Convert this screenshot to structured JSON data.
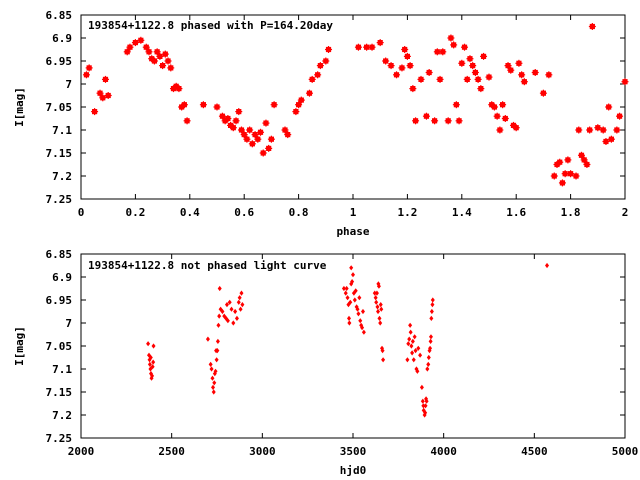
{
  "colors": {
    "series": "#ff0000",
    "axis": "#000000",
    "background": "#ffffff"
  },
  "chart_data": [
    {
      "type": "scatter",
      "title": "193854+1122.8 phased with P=164.20day",
      "xlabel": "phase",
      "ylabel": "I[mag]",
      "xlim": [
        0,
        2
      ],
      "ylim": [
        6.85,
        7.25
      ],
      "y_inverted": true,
      "grid": false,
      "legend": "none",
      "marker": "star",
      "xticks": [
        "0",
        "0.2",
        "0.4",
        "0.6",
        "0.8",
        "1",
        "1.2",
        "1.4",
        "1.6",
        "1.8",
        "2"
      ],
      "xtick_values": [
        0,
        0.2,
        0.4,
        0.6,
        0.8,
        1,
        1.2,
        1.4,
        1.6,
        1.8,
        2
      ],
      "yticks": [
        "6.85",
        "6.9",
        "6.95",
        "7",
        "7.05",
        "7.1",
        "7.15",
        "7.2",
        "7.25"
      ],
      "ytick_values": [
        6.85,
        6.9,
        6.95,
        7,
        7.05,
        7.1,
        7.15,
        7.2,
        7.25
      ],
      "points": [
        [
          0.02,
          6.98
        ],
        [
          0.03,
          6.965
        ],
        [
          0.05,
          7.06
        ],
        [
          0.07,
          7.02
        ],
        [
          0.08,
          7.03
        ],
        [
          0.09,
          6.99
        ],
        [
          0.1,
          7.025
        ],
        [
          0.17,
          6.93
        ],
        [
          0.18,
          6.92
        ],
        [
          0.2,
          6.91
        ],
        [
          0.22,
          6.905
        ],
        [
          0.24,
          6.92
        ],
        [
          0.25,
          6.93
        ],
        [
          0.26,
          6.945
        ],
        [
          0.27,
          6.95
        ],
        [
          0.28,
          6.93
        ],
        [
          0.29,
          6.94
        ],
        [
          0.3,
          6.96
        ],
        [
          0.31,
          6.935
        ],
        [
          0.32,
          6.95
        ],
        [
          0.33,
          6.965
        ],
        [
          0.34,
          7.01
        ],
        [
          0.35,
          7.005
        ],
        [
          0.36,
          7.01
        ],
        [
          0.37,
          7.05
        ],
        [
          0.38,
          7.045
        ],
        [
          0.39,
          7.08
        ],
        [
          0.45,
          7.045
        ],
        [
          0.5,
          7.05
        ],
        [
          0.52,
          7.07
        ],
        [
          0.53,
          7.08
        ],
        [
          0.54,
          7.075
        ],
        [
          0.55,
          7.09
        ],
        [
          0.56,
          7.095
        ],
        [
          0.57,
          7.08
        ],
        [
          0.58,
          7.06
        ],
        [
          0.59,
          7.1
        ],
        [
          0.6,
          7.11
        ],
        [
          0.61,
          7.12
        ],
        [
          0.62,
          7.1
        ],
        [
          0.63,
          7.13
        ],
        [
          0.64,
          7.11
        ],
        [
          0.65,
          7.12
        ],
        [
          0.66,
          7.105
        ],
        [
          0.67,
          7.15
        ],
        [
          0.68,
          7.085
        ],
        [
          0.69,
          7.14
        ],
        [
          0.7,
          7.12
        ],
        [
          0.71,
          7.045
        ],
        [
          0.75,
          7.1
        ],
        [
          0.76,
          7.11
        ],
        [
          0.79,
          7.06
        ],
        [
          0.8,
          7.045
        ],
        [
          0.81,
          7.035
        ],
        [
          0.84,
          7.02
        ],
        [
          0.85,
          6.99
        ],
        [
          0.87,
          6.98
        ],
        [
          0.88,
          6.96
        ],
        [
          0.9,
          6.95
        ],
        [
          0.91,
          6.925
        ],
        [
          1.02,
          6.92
        ],
        [
          1.05,
          6.92
        ],
        [
          1.07,
          6.92
        ],
        [
          1.1,
          6.91
        ],
        [
          1.12,
          6.95
        ],
        [
          1.14,
          6.96
        ],
        [
          1.16,
          6.98
        ],
        [
          1.18,
          6.965
        ],
        [
          1.19,
          6.925
        ],
        [
          1.2,
          6.94
        ],
        [
          1.21,
          6.96
        ],
        [
          1.22,
          7.01
        ],
        [
          1.23,
          7.08
        ],
        [
          1.25,
          6.99
        ],
        [
          1.27,
          7.07
        ],
        [
          1.28,
          6.975
        ],
        [
          1.3,
          7.08
        ],
        [
          1.31,
          6.93
        ],
        [
          1.32,
          6.99
        ],
        [
          1.33,
          6.93
        ],
        [
          1.35,
          7.08
        ],
        [
          1.36,
          6.9
        ],
        [
          1.37,
          6.915
        ],
        [
          1.38,
          7.045
        ],
        [
          1.39,
          7.08
        ],
        [
          1.4,
          6.955
        ],
        [
          1.41,
          6.92
        ],
        [
          1.42,
          6.99
        ],
        [
          1.43,
          6.945
        ],
        [
          1.44,
          6.96
        ],
        [
          1.45,
          6.975
        ],
        [
          1.46,
          6.99
        ],
        [
          1.47,
          7.01
        ],
        [
          1.48,
          6.94
        ],
        [
          1.5,
          6.985
        ],
        [
          1.51,
          7.045
        ],
        [
          1.52,
          7.05
        ],
        [
          1.53,
          7.07
        ],
        [
          1.54,
          7.1
        ],
        [
          1.55,
          7.045
        ],
        [
          1.56,
          7.075
        ],
        [
          1.57,
          6.96
        ],
        [
          1.58,
          6.97
        ],
        [
          1.59,
          7.09
        ],
        [
          1.6,
          7.095
        ],
        [
          1.61,
          6.955
        ],
        [
          1.62,
          6.98
        ],
        [
          1.63,
          6.995
        ],
        [
          1.67,
          6.975
        ],
        [
          1.7,
          7.02
        ],
        [
          1.72,
          6.98
        ],
        [
          1.74,
          7.2
        ],
        [
          1.75,
          7.175
        ],
        [
          1.76,
          7.17
        ],
        [
          1.77,
          7.215
        ],
        [
          1.78,
          7.195
        ],
        [
          1.79,
          7.165
        ],
        [
          1.8,
          7.195
        ],
        [
          1.82,
          7.2
        ],
        [
          1.83,
          7.1
        ],
        [
          1.84,
          7.155
        ],
        [
          1.85,
          7.165
        ],
        [
          1.86,
          7.175
        ],
        [
          1.87,
          7.1
        ],
        [
          1.88,
          6.875
        ],
        [
          1.9,
          7.095
        ],
        [
          1.92,
          7.1
        ],
        [
          1.93,
          7.125
        ],
        [
          1.94,
          7.05
        ],
        [
          1.95,
          7.12
        ],
        [
          1.97,
          7.1
        ],
        [
          1.98,
          7.07
        ],
        [
          2.0,
          6.995
        ]
      ]
    },
    {
      "type": "scatter",
      "title": "193854+1122.8 not phased light curve",
      "xlabel": "hjd0",
      "ylabel": "I[mag]",
      "xlim": [
        2000,
        5000
      ],
      "ylim": [
        6.85,
        7.25
      ],
      "y_inverted": true,
      "grid": false,
      "legend": "none",
      "marker": "diamond",
      "xticks": [
        "2000",
        "2500",
        "3000",
        "3500",
        "4000",
        "4500",
        "5000"
      ],
      "xtick_values": [
        2000,
        2500,
        3000,
        3500,
        4000,
        4500,
        5000
      ],
      "yticks": [
        "6.85",
        "6.9",
        "6.95",
        "7",
        "7.05",
        "7.1",
        "7.15",
        "7.2",
        "7.25"
      ],
      "ytick_values": [
        6.85,
        6.9,
        6.95,
        7,
        7.05,
        7.1,
        7.15,
        7.2,
        7.25
      ],
      "points": [
        [
          2370,
          7.045
        ],
        [
          2375,
          7.07
        ],
        [
          2378,
          7.08
        ],
        [
          2380,
          7.09
        ],
        [
          2383,
          7.1
        ],
        [
          2386,
          7.11
        ],
        [
          2389,
          7.12
        ],
        [
          2392,
          7.115
        ],
        [
          2395,
          7.095
        ],
        [
          2398,
          7.085
        ],
        [
          2400,
          7.05
        ],
        [
          2385,
          7.075
        ],
        [
          2700,
          7.035
        ],
        [
          2715,
          7.09
        ],
        [
          2720,
          7.1
        ],
        [
          2725,
          7.12
        ],
        [
          2728,
          7.14
        ],
        [
          2732,
          7.15
        ],
        [
          2735,
          7.13
        ],
        [
          2738,
          7.11
        ],
        [
          2742,
          7.105
        ],
        [
          2745,
          7.06
        ],
        [
          2748,
          7.08
        ],
        [
          2752,
          7.06
        ],
        [
          2755,
          7.04
        ],
        [
          2758,
          7.005
        ],
        [
          2762,
          6.985
        ],
        [
          2765,
          6.925
        ],
        [
          2770,
          6.97
        ],
        [
          2780,
          6.975
        ],
        [
          2790,
          6.985
        ],
        [
          2800,
          6.99
        ],
        [
          2805,
          6.96
        ],
        [
          2810,
          6.995
        ],
        [
          2820,
          6.955
        ],
        [
          2830,
          6.97
        ],
        [
          2840,
          7.0
        ],
        [
          2850,
          6.975
        ],
        [
          2860,
          6.99
        ],
        [
          2870,
          6.955
        ],
        [
          2875,
          6.945
        ],
        [
          2880,
          6.97
        ],
        [
          2885,
          6.935
        ],
        [
          2890,
          6.96
        ],
        [
          3450,
          6.925
        ],
        [
          3460,
          6.935
        ],
        [
          3465,
          6.925
        ],
        [
          3470,
          6.945
        ],
        [
          3475,
          6.96
        ],
        [
          3478,
          6.99
        ],
        [
          3480,
          7.0
        ],
        [
          3485,
          6.955
        ],
        [
          3490,
          6.915
        ],
        [
          3495,
          6.91
        ],
        [
          3500,
          6.895
        ],
        [
          3505,
          6.935
        ],
        [
          3510,
          6.95
        ],
        [
          3515,
          6.93
        ],
        [
          3520,
          6.965
        ],
        [
          3525,
          6.97
        ],
        [
          3530,
          6.98
        ],
        [
          3535,
          6.945
        ],
        [
          3540,
          6.995
        ],
        [
          3545,
          7.005
        ],
        [
          3550,
          7.01
        ],
        [
          3555,
          6.975
        ],
        [
          3560,
          7.02
        ],
        [
          3490,
          6.88
        ],
        [
          3620,
          6.935
        ],
        [
          3625,
          6.945
        ],
        [
          3628,
          6.955
        ],
        [
          3632,
          6.935
        ],
        [
          3635,
          6.965
        ],
        [
          3638,
          6.975
        ],
        [
          3640,
          6.915
        ],
        [
          3643,
          6.92
        ],
        [
          3646,
          6.99
        ],
        [
          3650,
          7.0
        ],
        [
          3653,
          6.96
        ],
        [
          3656,
          6.97
        ],
        [
          3660,
          7.055
        ],
        [
          3663,
          7.06
        ],
        [
          3666,
          7.08
        ],
        [
          3800,
          7.08
        ],
        [
          3805,
          7.045
        ],
        [
          3810,
          7.035
        ],
        [
          3815,
          7.005
        ],
        [
          3818,
          7.02
        ],
        [
          3822,
          7.05
        ],
        [
          3826,
          7.065
        ],
        [
          3830,
          7.04
        ],
        [
          3835,
          7.08
        ],
        [
          3840,
          7.03
        ],
        [
          3845,
          7.06
        ],
        [
          3850,
          7.1
        ],
        [
          3855,
          7.105
        ],
        [
          3860,
          7.055
        ],
        [
          3870,
          7.07
        ],
        [
          3880,
          7.14
        ],
        [
          3885,
          7.17
        ],
        [
          3888,
          7.18
        ],
        [
          3890,
          7.19
        ],
        [
          3895,
          7.2
        ],
        [
          3898,
          7.195
        ],
        [
          3900,
          7.18
        ],
        [
          3903,
          7.165
        ],
        [
          3906,
          7.17
        ],
        [
          3910,
          7.1
        ],
        [
          3915,
          7.09
        ],
        [
          3918,
          7.075
        ],
        [
          3922,
          7.06
        ],
        [
          3925,
          7.055
        ],
        [
          3928,
          7.04
        ],
        [
          3930,
          7.03
        ],
        [
          3932,
          6.99
        ],
        [
          3935,
          6.975
        ],
        [
          3938,
          6.96
        ],
        [
          3940,
          6.95
        ],
        [
          4570,
          6.875
        ]
      ]
    }
  ]
}
